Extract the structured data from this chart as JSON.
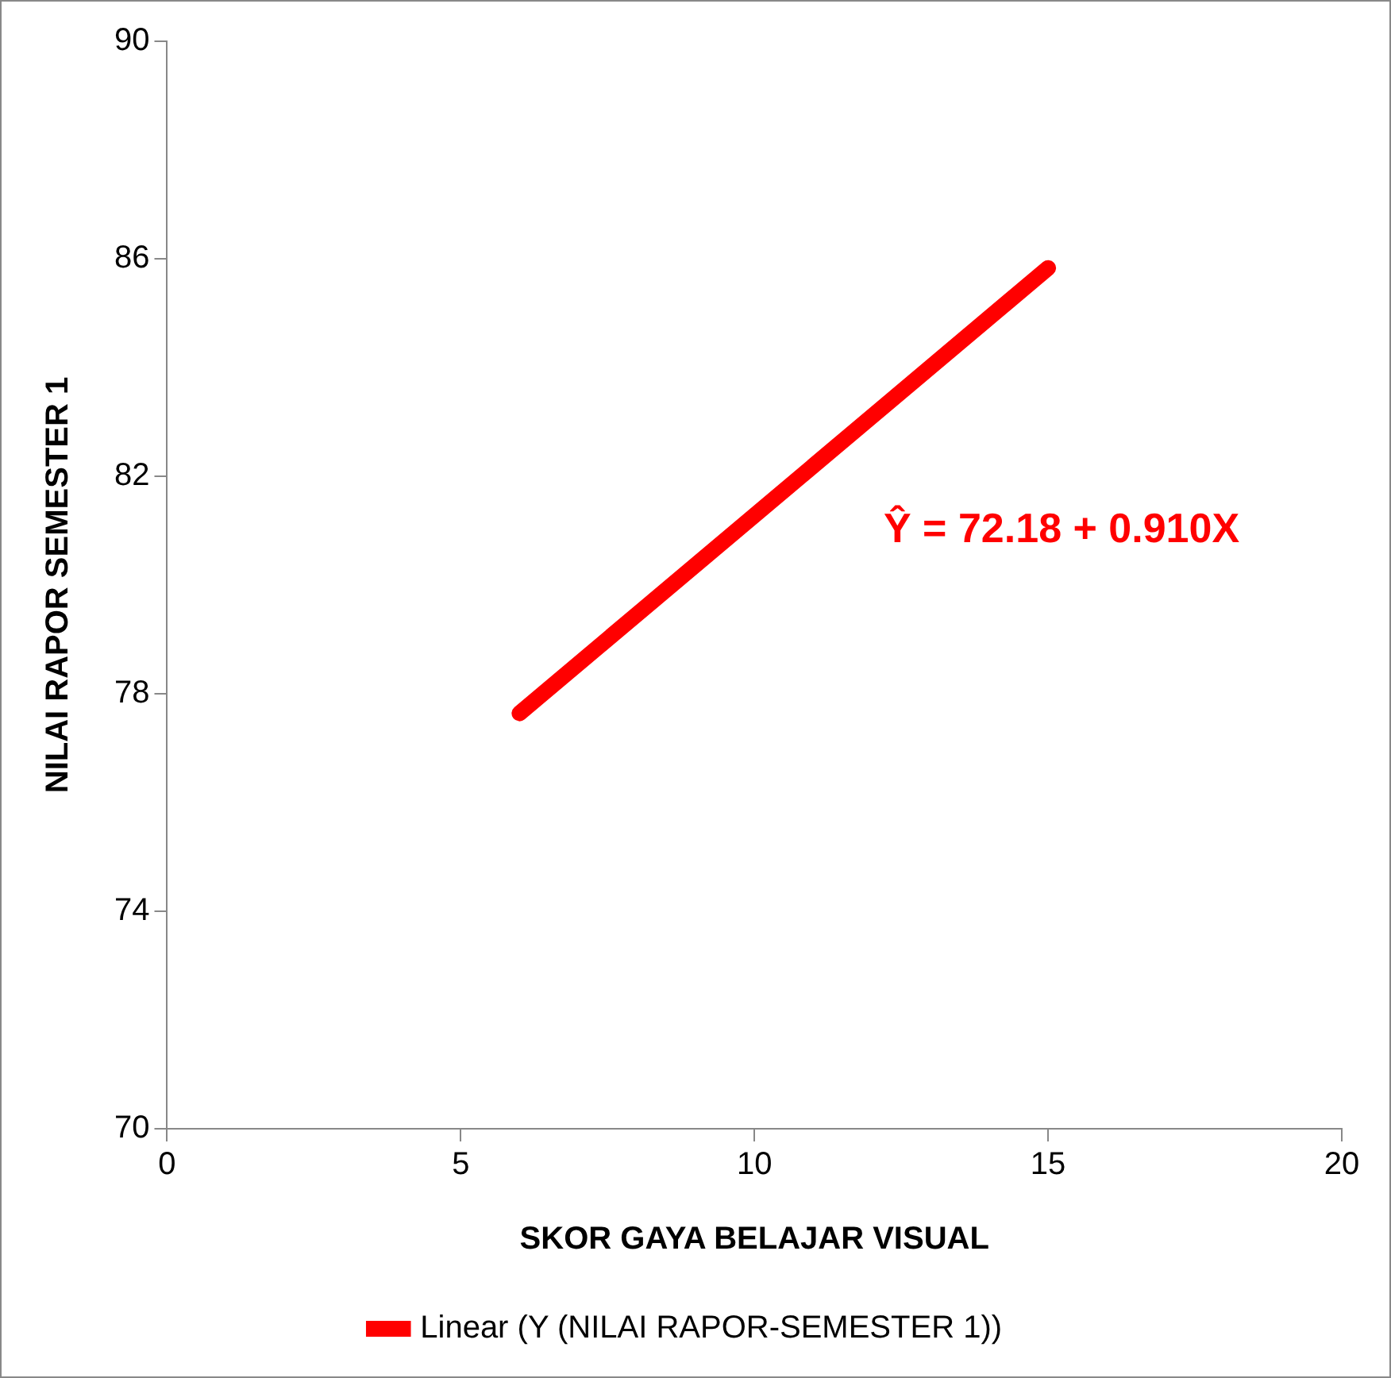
{
  "chart_data": {
    "type": "line",
    "xlabel": "SKOR GAYA BELAJAR VISUAL",
    "ylabel": "NILAI RAPOR SEMESTER 1",
    "series": [
      {
        "name": "Linear (Y (NILAI RAPOR-SEMESTER 1))",
        "color": "#ff0000",
        "x": [
          6,
          15
        ],
        "values": [
          77.64,
          85.83
        ]
      }
    ],
    "xlim": [
      0,
      20
    ],
    "xticks": [
      0,
      5,
      10,
      15,
      20
    ],
    "ylim": [
      70,
      90
    ],
    "yticks": [
      70,
      74,
      78,
      82,
      86,
      90
    ],
    "annotations": [
      "Ŷ = 72.18 + 0.910X"
    ],
    "grid": false,
    "legend": "bottom",
    "marker": "none",
    "line_style": "solid"
  }
}
